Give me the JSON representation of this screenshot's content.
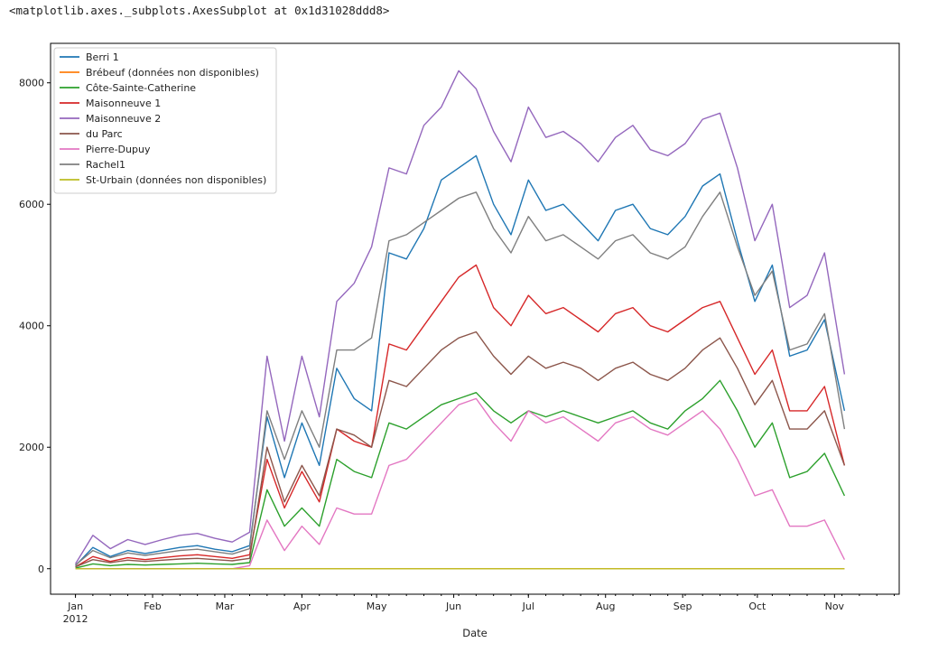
{
  "output_repr": "<matplotlib.axes._subplots.AxesSubplot at 0x1d31028ddd8>",
  "chart_data": {
    "type": "line",
    "title": "",
    "xlabel": "Date",
    "ylabel": "",
    "xlim": [
      "2011-12-22",
      "2012-11-27"
    ],
    "ylim": [
      -420,
      8650
    ],
    "grid": false,
    "legend_position": "upper-left",
    "y_ticks": [
      0,
      2000,
      4000,
      6000,
      8000
    ],
    "y_tick_labels": [
      "0",
      "2000",
      "4000",
      "6000",
      "8000"
    ],
    "x_ticks": [
      {
        "date": "2012-01-01",
        "label": "Jan",
        "sublabel": "2012"
      },
      {
        "date": "2012-02-01",
        "label": "Feb",
        "sublabel": ""
      },
      {
        "date": "2012-03-01",
        "label": "Mar",
        "sublabel": ""
      },
      {
        "date": "2012-04-01",
        "label": "Apr",
        "sublabel": ""
      },
      {
        "date": "2012-05-01",
        "label": "May",
        "sublabel": ""
      },
      {
        "date": "2012-06-01",
        "label": "Jun",
        "sublabel": ""
      },
      {
        "date": "2012-07-01",
        "label": "Jul",
        "sublabel": ""
      },
      {
        "date": "2012-08-01",
        "label": "Aug",
        "sublabel": ""
      },
      {
        "date": "2012-09-01",
        "label": "Sep",
        "sublabel": ""
      },
      {
        "date": "2012-10-01",
        "label": "Oct",
        "sublabel": ""
      },
      {
        "date": "2012-11-01",
        "label": "Nov",
        "sublabel": ""
      }
    ],
    "x": [
      "2012-01-01",
      "2012-01-08",
      "2012-01-15",
      "2012-01-22",
      "2012-01-29",
      "2012-02-05",
      "2012-02-12",
      "2012-02-19",
      "2012-02-26",
      "2012-03-04",
      "2012-03-11",
      "2012-03-18",
      "2012-03-25",
      "2012-04-01",
      "2012-04-08",
      "2012-04-15",
      "2012-04-22",
      "2012-04-29",
      "2012-05-06",
      "2012-05-13",
      "2012-05-20",
      "2012-05-27",
      "2012-06-03",
      "2012-06-10",
      "2012-06-17",
      "2012-06-24",
      "2012-07-01",
      "2012-07-08",
      "2012-07-15",
      "2012-07-22",
      "2012-07-29",
      "2012-08-05",
      "2012-08-12",
      "2012-08-19",
      "2012-08-26",
      "2012-09-02",
      "2012-09-09",
      "2012-09-16",
      "2012-09-23",
      "2012-09-30",
      "2012-10-07",
      "2012-10-14",
      "2012-10-21",
      "2012-10-28",
      "2012-11-05"
    ],
    "series": [
      {
        "name": "Berri 1",
        "color": "#1f77b4",
        "values": [
          50,
          350,
          200,
          300,
          250,
          300,
          350,
          380,
          320,
          280,
          380,
          2500,
          1500,
          2400,
          1700,
          3300,
          2800,
          2600,
          5200,
          5100,
          5600,
          6400,
          6600,
          6800,
          6000,
          5500,
          6400,
          5900,
          6000,
          5700,
          5400,
          5900,
          6000,
          5600,
          5500,
          5800,
          6300,
          6500,
          5400,
          4400,
          5000,
          3500,
          3600,
          4100,
          2600
        ]
      },
      {
        "name": "Brébeuf (données non disponibles)",
        "color": "#ff7f0e",
        "values": [
          0,
          0,
          0,
          0,
          0,
          0,
          0,
          0,
          0,
          0,
          0,
          0,
          0,
          0,
          0,
          0,
          0,
          0,
          0,
          0,
          0,
          0,
          0,
          0,
          0,
          0,
          0,
          0,
          0,
          0,
          0,
          0,
          0,
          0,
          0,
          0,
          0,
          0,
          0,
          0,
          0,
          0,
          0,
          0,
          0
        ]
      },
      {
        "name": "Côte-Sainte-Catherine",
        "color": "#2ca02c",
        "values": [
          10,
          80,
          50,
          70,
          60,
          70,
          80,
          90,
          80,
          70,
          100,
          1300,
          700,
          1000,
          700,
          1800,
          1600,
          1500,
          2400,
          2300,
          2500,
          2700,
          2800,
          2900,
          2600,
          2400,
          2600,
          2500,
          2600,
          2500,
          2400,
          2500,
          2600,
          2400,
          2300,
          2600,
          2800,
          3100,
          2600,
          2000,
          2400,
          1500,
          1600,
          1900,
          1200
        ]
      },
      {
        "name": "Maisonneuve 1",
        "color": "#d62728",
        "values": [
          30,
          200,
          120,
          180,
          150,
          180,
          210,
          230,
          200,
          170,
          230,
          1800,
          1000,
          1600,
          1100,
          2300,
          2100,
          2000,
          3700,
          3600,
          4000,
          4400,
          4800,
          5000,
          4300,
          4000,
          4500,
          4200,
          4300,
          4100,
          3900,
          4200,
          4300,
          4000,
          3900,
          4100,
          4300,
          4400,
          3800,
          3200,
          3600,
          2600,
          2600,
          3000,
          1700
        ]
      },
      {
        "name": "Maisonneuve 2",
        "color": "#9467bd",
        "values": [
          80,
          550,
          330,
          480,
          400,
          480,
          550,
          580,
          500,
          440,
          600,
          3500,
          2100,
          3500,
          2500,
          4400,
          4700,
          5300,
          6600,
          6500,
          7300,
          7600,
          8200,
          7900,
          7200,
          6700,
          7600,
          7100,
          7200,
          7000,
          6700,
          7100,
          7300,
          6900,
          6800,
          7000,
          7400,
          7500,
          6600,
          5400,
          6000,
          4300,
          4500,
          5200,
          3200
        ]
      },
      {
        "name": "du Parc",
        "color": "#8c564b",
        "values": [
          30,
          150,
          100,
          140,
          120,
          140,
          160,
          170,
          150,
          130,
          170,
          2000,
          1100,
          1700,
          1200,
          2300,
          2200,
          2000,
          3100,
          3000,
          3300,
          3600,
          3800,
          3900,
          3500,
          3200,
          3500,
          3300,
          3400,
          3300,
          3100,
          3300,
          3400,
          3200,
          3100,
          3300,
          3600,
          3800,
          3300,
          2700,
          3100,
          2300,
          2300,
          2600,
          1700
        ]
      },
      {
        "name": "Pierre-Dupuy",
        "color": "#e377c2",
        "values": [
          0,
          0,
          0,
          0,
          0,
          0,
          0,
          0,
          0,
          0,
          50,
          800,
          300,
          700,
          400,
          1000,
          900,
          900,
          1700,
          1800,
          2100,
          2400,
          2700,
          2800,
          2400,
          2100,
          2600,
          2400,
          2500,
          2300,
          2100,
          2400,
          2500,
          2300,
          2200,
          2400,
          2600,
          2300,
          1800,
          1200,
          1300,
          700,
          700,
          800,
          150
        ]
      },
      {
        "name": "Rachel1",
        "color": "#7f7f7f",
        "values": [
          60,
          300,
          180,
          260,
          220,
          260,
          300,
          320,
          280,
          240,
          330,
          2600,
          1800,
          2600,
          2000,
          3600,
          3600,
          3800,
          5400,
          5500,
          5700,
          5900,
          6100,
          6200,
          5600,
          5200,
          5800,
          5400,
          5500,
          5300,
          5100,
          5400,
          5500,
          5200,
          5100,
          5300,
          5800,
          6200,
          5300,
          4500,
          4900,
          3600,
          3700,
          4200,
          2300
        ]
      },
      {
        "name": "St-Urbain (données non disponibles)",
        "color": "#bcbd22",
        "values": [
          0,
          0,
          0,
          0,
          0,
          0,
          0,
          0,
          0,
          0,
          0,
          0,
          0,
          0,
          0,
          0,
          0,
          0,
          0,
          0,
          0,
          0,
          0,
          0,
          0,
          0,
          0,
          0,
          0,
          0,
          0,
          0,
          0,
          0,
          0,
          0,
          0,
          0,
          0,
          0,
          0,
          0,
          0,
          0,
          0
        ]
      }
    ]
  }
}
